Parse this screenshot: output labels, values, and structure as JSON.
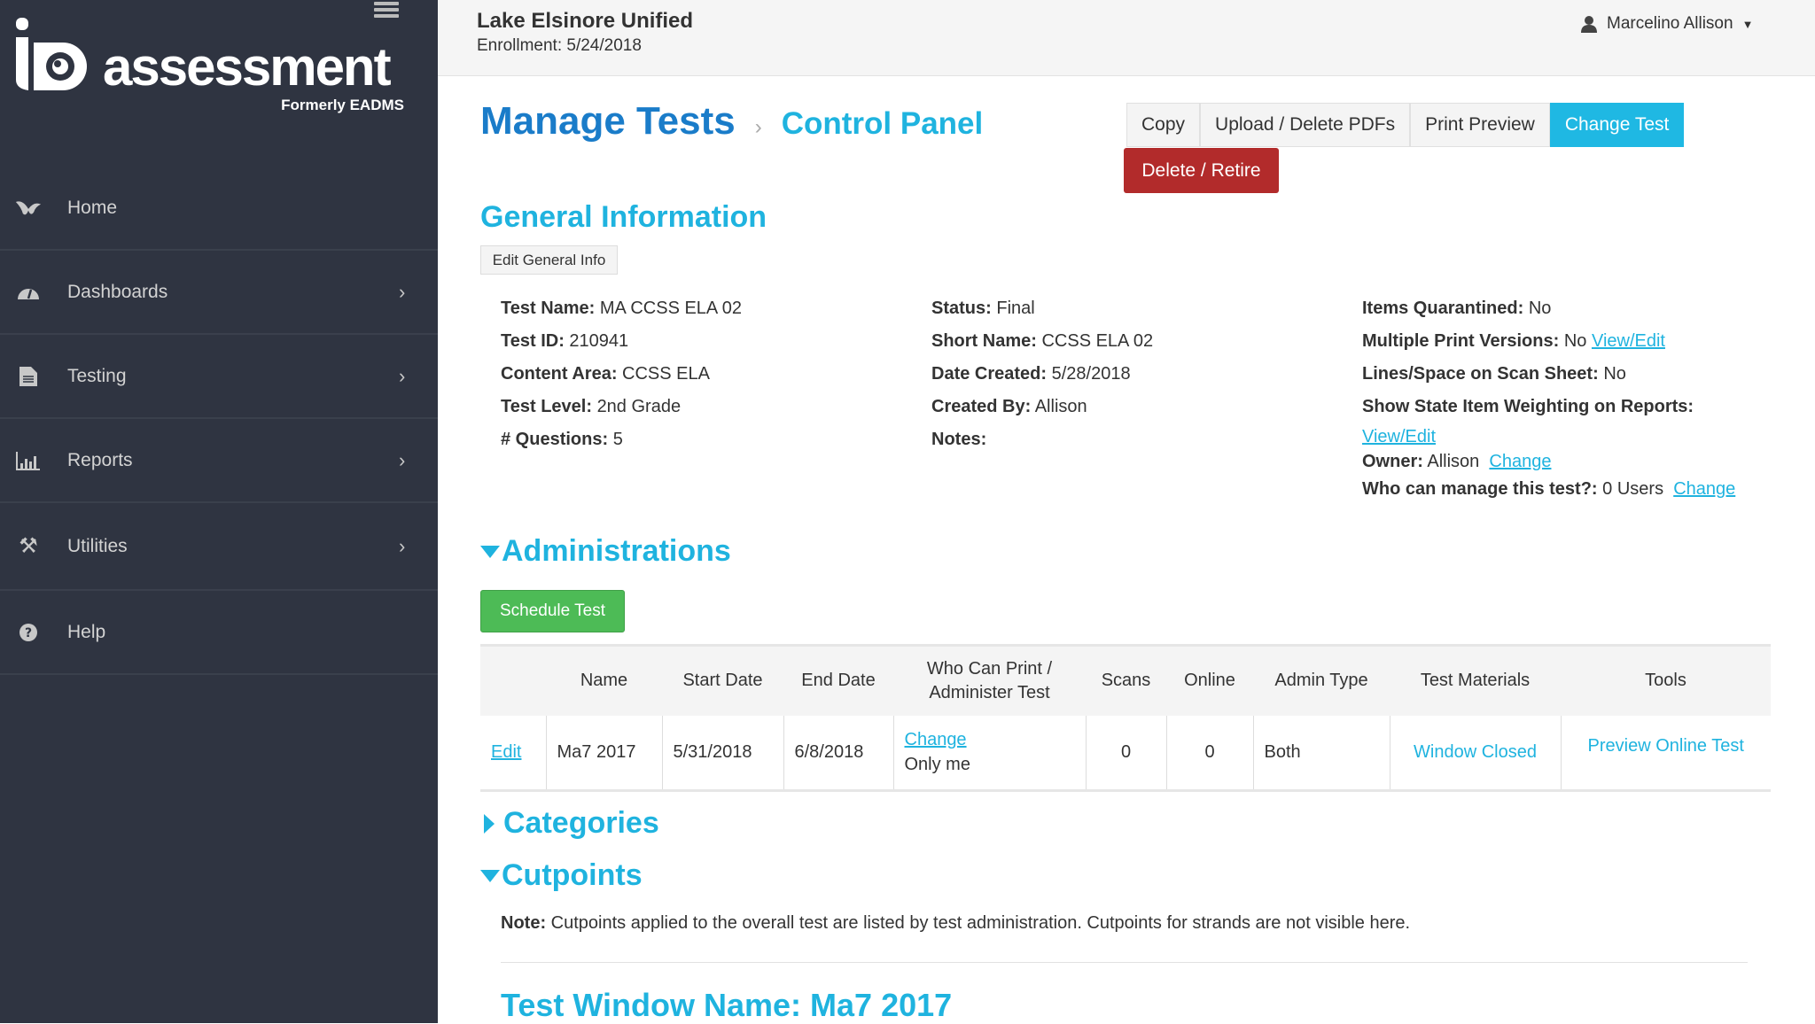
{
  "brand": {
    "logo_text": "assessment",
    "logo_sub": "Formerly EADMS"
  },
  "sidebar": {
    "items": [
      {
        "label": "Home",
        "icon": "butterfly-icon"
      },
      {
        "label": "Dashboards",
        "icon": "dashboard-icon"
      },
      {
        "label": "Testing",
        "icon": "document-icon"
      },
      {
        "label": "Reports",
        "icon": "bar-chart-icon"
      },
      {
        "label": "Utilities",
        "icon": "tools-icon"
      },
      {
        "label": "Help",
        "icon": "question-icon"
      }
    ]
  },
  "header": {
    "org": "Lake Elsinore Unified",
    "enrollment": "Enrollment: 5/24/2018",
    "user": "Marcelino Allison"
  },
  "page": {
    "title": "Manage Tests",
    "subtitle": "Control Panel"
  },
  "toolbar": {
    "copy": "Copy",
    "upload": "Upload / Delete PDFs",
    "print": "Print Preview",
    "change": "Change Test",
    "delete": "Delete / Retire"
  },
  "general": {
    "heading": "General Information",
    "edit": "Edit General Info",
    "col1": [
      [
        "Test Name:",
        "MA CCSS ELA 02"
      ],
      [
        "Test ID:",
        "210941"
      ],
      [
        "Content Area:",
        "CCSS ELA"
      ],
      [
        "Test Level:",
        "2nd Grade"
      ],
      [
        "# Questions:",
        "5"
      ]
    ],
    "col2": [
      [
        "Status:",
        "Final"
      ],
      [
        "Short Name:",
        "CCSS ELA 02"
      ],
      [
        "Date Created:",
        "5/28/2018"
      ],
      [
        "Created By:",
        "Allison"
      ],
      [
        "Notes:",
        ""
      ]
    ],
    "col3": {
      "quarantined": [
        "Items Quarantined:",
        "No"
      ],
      "print_versions": [
        "Multiple Print Versions:",
        "No",
        "View/Edit"
      ],
      "lines_space": [
        "Lines/Space on Scan Sheet:",
        "No"
      ],
      "weighting": [
        "Show State Item Weighting on Reports:",
        "View/Edit"
      ],
      "owner": [
        "Owner:",
        "Allison",
        "Change"
      ],
      "managers": [
        "Who can manage this test?:",
        "0 Users",
        "Change"
      ]
    }
  },
  "admin": {
    "heading": "Administrations",
    "schedule": "Schedule Test",
    "columns": [
      "",
      "Name",
      "Start Date",
      "End Date",
      "Who Can Print /",
      "Administer Test",
      "Scans",
      "Online",
      "Admin Type",
      "Test Materials",
      "Tools"
    ],
    "row": {
      "edit": "Edit",
      "name": "Ma7 2017",
      "start": "5/31/2018",
      "end": "6/8/2018",
      "who_link": "Change",
      "who": "Only me",
      "scans": "0",
      "online": "0",
      "type": "Both",
      "materials": "Window Closed",
      "tools": "Preview Online Test"
    }
  },
  "categories": {
    "heading": "Categories"
  },
  "cutpoints": {
    "heading": "Cutpoints",
    "note_label": "Note:",
    "note": " Cutpoints applied to the overall test are listed by test administration. Cutpoints for strands are not visible here.",
    "window_title": "Test Window Name: Ma7 2017"
  },
  "colors": {
    "sidebar": "#2f3441",
    "accent": "#1fb3df",
    "title": "#1a7cc9",
    "danger": "#b22b2b",
    "success": "#4dbb56"
  }
}
